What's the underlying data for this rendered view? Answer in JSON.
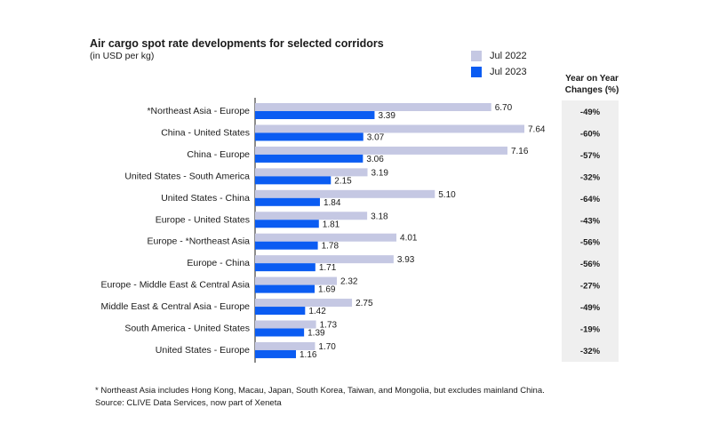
{
  "chart_data": {
    "type": "bar",
    "orientation": "horizontal",
    "title": "Air cargo spot rate developments for selected corridors",
    "subtitle": "(in USD per kg)",
    "categories": [
      "*Northeast Asia - Europe",
      "China - United States",
      "China - Europe",
      "United States - South America",
      "United States - China",
      "Europe - United States",
      "Europe - *Northeast Asia",
      "Europe - China",
      "Europe - Middle East & Central Asia",
      "Middle East & Central Asia - Europe",
      "South America - United States",
      "United States - Europe"
    ],
    "series": [
      {
        "name": "Jul 2022",
        "color": "#c5c8e3",
        "values": [
          6.7,
          7.64,
          7.16,
          3.19,
          5.1,
          3.18,
          4.01,
          3.93,
          2.32,
          2.75,
          1.73,
          1.7
        ],
        "labels": [
          "6.70",
          "7.64",
          "7.16",
          "3.19",
          "5.10",
          "3.18",
          "4.01",
          "3.93",
          "2.32",
          "2.75",
          "1.73",
          "1.70"
        ]
      },
      {
        "name": "Jul 2023",
        "color": "#0b5cf2",
        "values": [
          3.39,
          3.07,
          3.06,
          2.15,
          1.84,
          1.81,
          1.78,
          1.71,
          1.69,
          1.42,
          1.39,
          1.16
        ],
        "labels": [
          "3.39",
          "3.07",
          "3.06",
          "2.15",
          "1.84",
          "1.81",
          "1.78",
          "1.71",
          "1.69",
          "1.42",
          "1.39",
          "1.16"
        ]
      }
    ],
    "yoy_header": "Year on Year Changes (%)",
    "yoy_changes": [
      "-49%",
      "-60%",
      "-57%",
      "-32%",
      "-64%",
      "-43%",
      "-56%",
      "-56%",
      "-27%",
      "-49%",
      "-19%",
      "-32%"
    ],
    "xlim": [
      0,
      7.64
    ],
    "legend_position": "top-right",
    "grid": false
  },
  "footnotes": {
    "note": "* Northeast Asia includes Hong Kong, Macau, Japan, South Korea, Taiwan, and Mongolia, but excludes mainland China.",
    "source": "Source: CLIVE Data Services, now part of Xeneta"
  }
}
